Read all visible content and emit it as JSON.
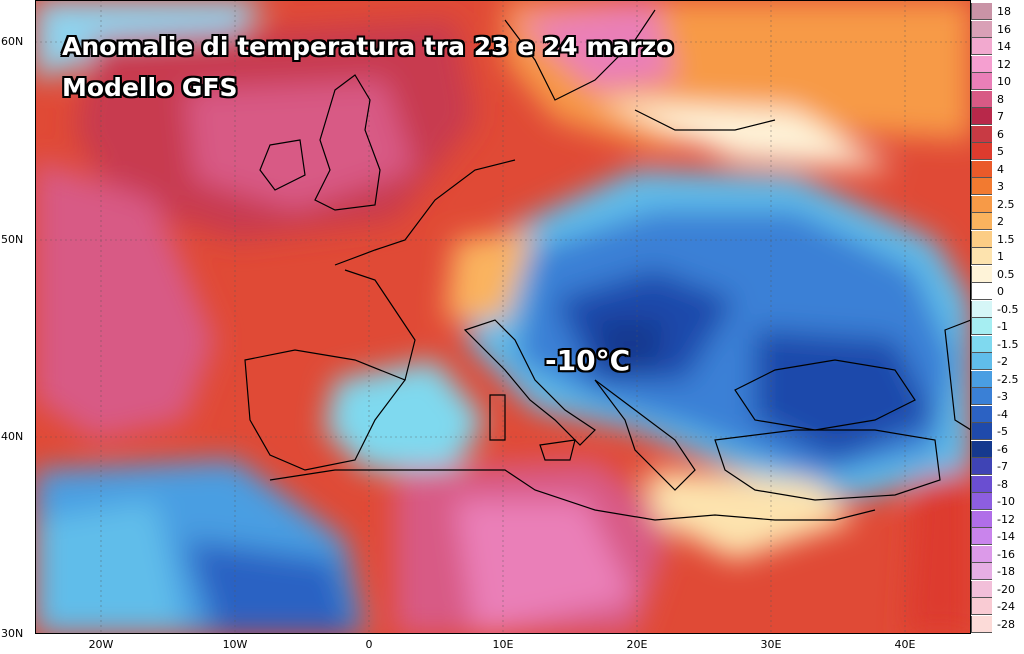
{
  "title": {
    "line1": "Anomalie di temperatura tra 23 e 24 marzo",
    "line2": "Modello GFS"
  },
  "annotation": "-10°C",
  "lat_labels": [
    "60N",
    "50N",
    "40N",
    "30N"
  ],
  "lon_labels": [
    "20W",
    "10W",
    "0",
    "10E",
    "20E",
    "30E",
    "40E"
  ],
  "legend": [
    {
      "label": "18",
      "color": "#c993a6"
    },
    {
      "label": "16",
      "color": "#d9a0b6"
    },
    {
      "label": "14",
      "color": "#f2a9cf"
    },
    {
      "label": "12",
      "color": "#f59fd0"
    },
    {
      "label": "10",
      "color": "#ea7fb8"
    },
    {
      "label": "8",
      "color": "#d85a85"
    },
    {
      "label": "7",
      "color": "#b8284a"
    },
    {
      "label": "6",
      "color": "#c83a44"
    },
    {
      "label": "5",
      "color": "#dd3b2e"
    },
    {
      "label": "4",
      "color": "#ea5a2a"
    },
    {
      "label": "3",
      "color": "#f27a30"
    },
    {
      "label": "2.5",
      "color": "#f79a47"
    },
    {
      "label": "2",
      "color": "#fab35e"
    },
    {
      "label": "1.5",
      "color": "#fccd85"
    },
    {
      "label": "1",
      "color": "#fde3ae"
    },
    {
      "label": "0.5",
      "color": "#fef3d8"
    },
    {
      "label": "0",
      "color": "#ffffff"
    },
    {
      "label": "-0.5",
      "color": "#d6f6f7"
    },
    {
      "label": "-1",
      "color": "#a6eef2"
    },
    {
      "label": "-1.5",
      "color": "#7fd9ef"
    },
    {
      "label": "-2",
      "color": "#60bdea"
    },
    {
      "label": "-2.5",
      "color": "#4a9ee2"
    },
    {
      "label": "-3",
      "color": "#3a80d6"
    },
    {
      "label": "-4",
      "color": "#2c62c3"
    },
    {
      "label": "-5",
      "color": "#1f4aab"
    },
    {
      "label": "-6",
      "color": "#15398e"
    },
    {
      "label": "-7",
      "color": "#3f44b5"
    },
    {
      "label": "-8",
      "color": "#6a4ed1"
    },
    {
      "label": "-10",
      "color": "#8d5ee0"
    },
    {
      "label": "-12",
      "color": "#b06ee8"
    },
    {
      "label": "-14",
      "color": "#c984ec"
    },
    {
      "label": "-16",
      "color": "#dc9ae9"
    },
    {
      "label": "-18",
      "color": "#e6aee4"
    },
    {
      "label": "-20",
      "color": "#f2bfd9"
    },
    {
      "label": "-24",
      "color": "#f9cbd3"
    },
    {
      "label": "-28",
      "color": "#fcdbd8"
    }
  ]
}
